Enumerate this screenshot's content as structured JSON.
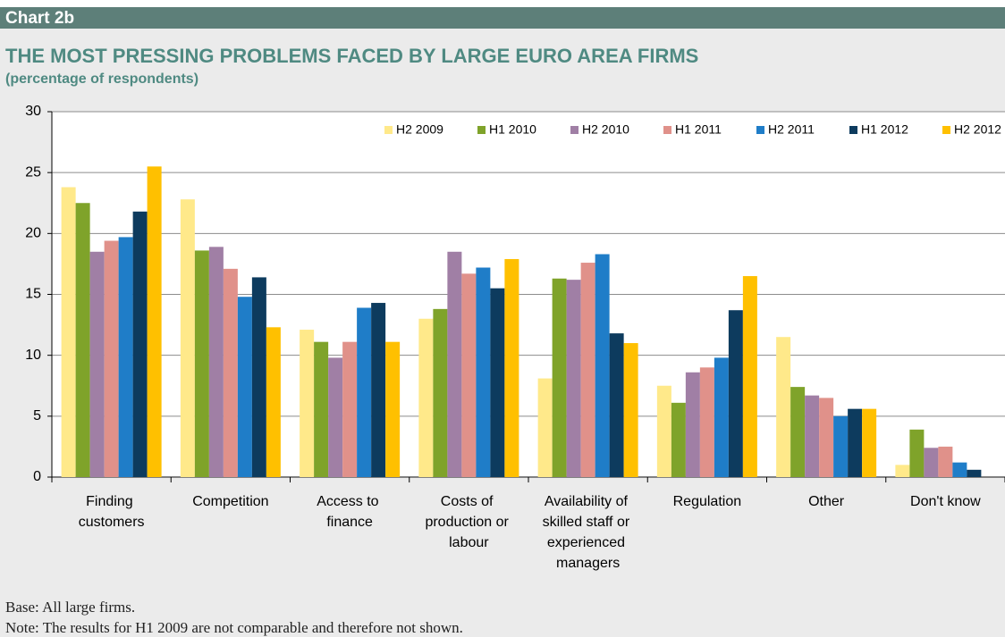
{
  "header": {
    "label": "Chart 2b"
  },
  "chart_data": {
    "type": "bar",
    "title": "THE MOST PRESSING PROBLEMS FACED BY LARGE EURO AREA FIRMS",
    "subtitle": "(percentage of respondents)",
    "categories": [
      "Finding customers",
      "Competition",
      "Access to finance",
      "Costs of production or labour",
      "Availability of skilled staff or experienced managers",
      "Regulation",
      "Other",
      "Don't know"
    ],
    "series": [
      {
        "name": "H2 2009",
        "color": "#ffe98a",
        "values": [
          23.8,
          22.8,
          12.1,
          13.0,
          8.1,
          7.5,
          11.5,
          1.0
        ]
      },
      {
        "name": "H1 2010",
        "color": "#7fa32a",
        "values": [
          22.5,
          18.6,
          11.1,
          13.8,
          16.3,
          6.1,
          7.4,
          3.9
        ]
      },
      {
        "name": "H2 2010",
        "color": "#a07fa5",
        "values": [
          18.5,
          18.9,
          9.8,
          18.5,
          16.2,
          8.6,
          6.7,
          2.4
        ]
      },
      {
        "name": "H1 2011",
        "color": "#e0918a",
        "values": [
          19.4,
          17.1,
          11.1,
          16.7,
          17.6,
          9.0,
          6.5,
          2.5
        ]
      },
      {
        "name": "H2 2011",
        "color": "#1f7dc8",
        "values": [
          19.7,
          14.8,
          13.9,
          17.2,
          18.3,
          9.8,
          5.0,
          1.2
        ]
      },
      {
        "name": "H1 2012",
        "color": "#0d3b5e",
        "values": [
          21.8,
          16.4,
          14.3,
          15.5,
          11.8,
          13.7,
          5.6,
          0.6
        ]
      },
      {
        "name": "H2 2012",
        "color": "#ffc000",
        "values": [
          25.5,
          12.3,
          11.1,
          17.9,
          11.0,
          16.5,
          5.6,
          null
        ]
      }
    ],
    "ylim": [
      0,
      30
    ],
    "yticks": [
      0,
      5,
      10,
      15,
      20,
      25,
      30
    ],
    "grid": true,
    "legend": "top-right"
  },
  "footer": {
    "base": "Base: All large firms.",
    "note": "Note: The results for H1 2009 are not comparable and therefore not shown."
  }
}
